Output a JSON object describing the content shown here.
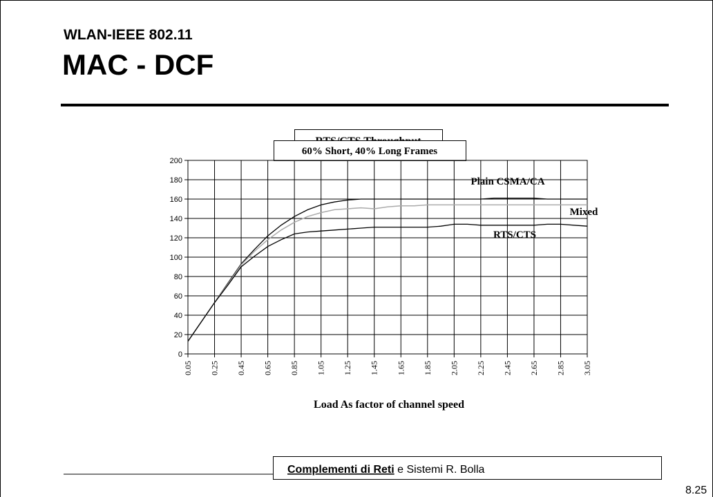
{
  "header": {
    "subtitle": "WLAN-IEEE 802.11",
    "title": "MAC - DCF"
  },
  "footer": {
    "course": "Complementi di Reti",
    "rest": "e Sistemi  R. Bolla",
    "page": "8.25"
  },
  "chart_data": {
    "type": "line",
    "title": "RTS/CTS Throughput",
    "subtitle": "60% Short, 40% Long Frames",
    "x_label": "Load As factor of channel speed",
    "x": [
      0.05,
      0.15,
      0.25,
      0.35,
      0.45,
      0.55,
      0.65,
      0.75,
      0.85,
      0.95,
      1.05,
      1.15,
      1.25,
      1.35,
      1.45,
      1.55,
      1.65,
      1.75,
      1.85,
      1.95,
      2.05,
      2.15,
      2.25,
      2.35,
      2.45,
      2.55,
      2.65,
      2.75,
      2.85,
      2.95,
      3.05
    ],
    "xlim": [
      0.05,
      3.05
    ],
    "xticks": [
      0.05,
      0.25,
      0.45,
      0.65,
      0.85,
      1.05,
      1.25,
      1.45,
      1.65,
      1.85,
      2.05,
      2.25,
      2.45,
      2.65,
      2.85,
      3.05
    ],
    "ylim": [
      0,
      200
    ],
    "yticks": [
      0,
      20,
      40,
      60,
      80,
      100,
      120,
      140,
      160,
      180,
      200
    ],
    "grid": true,
    "series": [
      {
        "name": "Plain CSMA/CA",
        "color": "#000000",
        "values": [
          13,
          33,
          53,
          73,
          93,
          108,
          122,
          133,
          142,
          149,
          154,
          157,
          159,
          160,
          160,
          160,
          160,
          160,
          160,
          160,
          160,
          160,
          160,
          161,
          161,
          161,
          161,
          160,
          160,
          160,
          160
        ]
      },
      {
        "name": "Mixed",
        "color": "#aaaaaa",
        "values": [
          13,
          33,
          53,
          72,
          92,
          106,
          118,
          128,
          136,
          142,
          146,
          149,
          150,
          151,
          150,
          152,
          153,
          153,
          154,
          154,
          154,
          154,
          154,
          154,
          154,
          154,
          154,
          154,
          154,
          154,
          154
        ]
      },
      {
        "name": "RTS/CTS",
        "color": "#000000",
        "values": [
          13,
          33,
          53,
          71,
          90,
          101,
          111,
          118,
          124,
          126,
          127,
          128,
          129,
          130,
          131,
          131,
          131,
          131,
          131,
          132,
          134,
          134,
          133,
          133,
          133,
          133,
          133,
          134,
          134,
          133,
          132
        ]
      }
    ]
  }
}
